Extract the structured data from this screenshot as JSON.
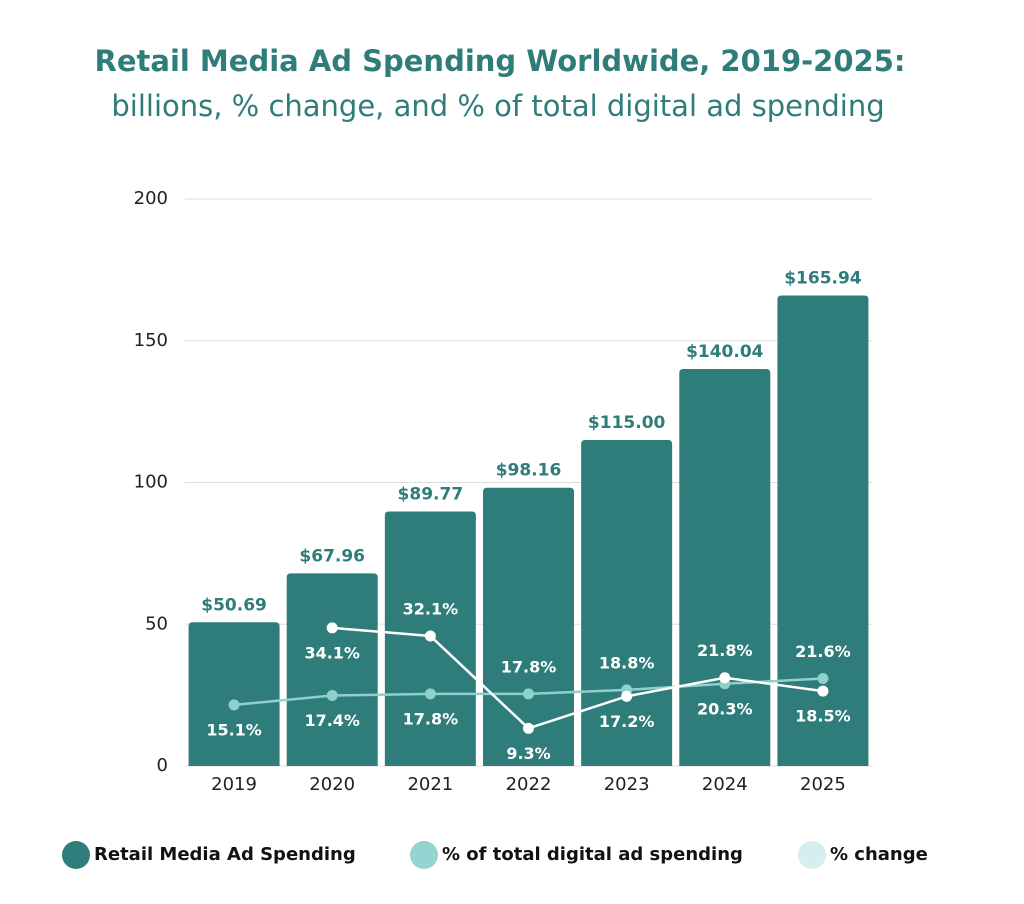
{
  "chart_data": {
    "type": "bar",
    "title": "Retail Media Ad Spending Worldwide, 2019-2025:",
    "subtitle": "billions, % change, and % of total digital ad spending",
    "categories": [
      "2019",
      "2020",
      "2021",
      "2022",
      "2023",
      "2024",
      "2025"
    ],
    "ylim": [
      0,
      200
    ],
    "yticks": [
      0,
      50,
      100,
      150,
      200
    ],
    "y2lim": [
      0,
      140
    ],
    "grid": true,
    "legend": "bottom",
    "series": [
      {
        "name": "Retail Media Ad Spending",
        "type": "bar",
        "color": "#2f7d7a",
        "values": [
          50.69,
          67.96,
          89.77,
          98.16,
          115.0,
          140.04,
          165.94
        ],
        "value_labels": [
          "$50.69",
          "$67.96",
          "$89.77",
          "$98.16",
          "$115.00",
          "$140.04",
          "$165.94"
        ]
      },
      {
        "name": "% of total digital ad spending",
        "type": "line",
        "axis": "y2",
        "color": "#8fd0cc",
        "values": [
          15.1,
          17.4,
          17.8,
          17.8,
          18.8,
          20.3,
          21.6
        ],
        "value_labels": [
          "15.1%",
          "17.4%",
          "17.8%",
          "17.8%",
          "18.8%",
          "20.3%",
          "21.6%"
        ]
      },
      {
        "name": "% change",
        "type": "line",
        "axis": "y2",
        "color": "#ffffff",
        "values": [
          null,
          34.1,
          32.1,
          9.3,
          17.2,
          21.8,
          18.5
        ],
        "value_labels": [
          null,
          "34.1%",
          "32.1%",
          "9.3%",
          "17.2%",
          "21.8%",
          "18.5%"
        ]
      }
    ]
  }
}
